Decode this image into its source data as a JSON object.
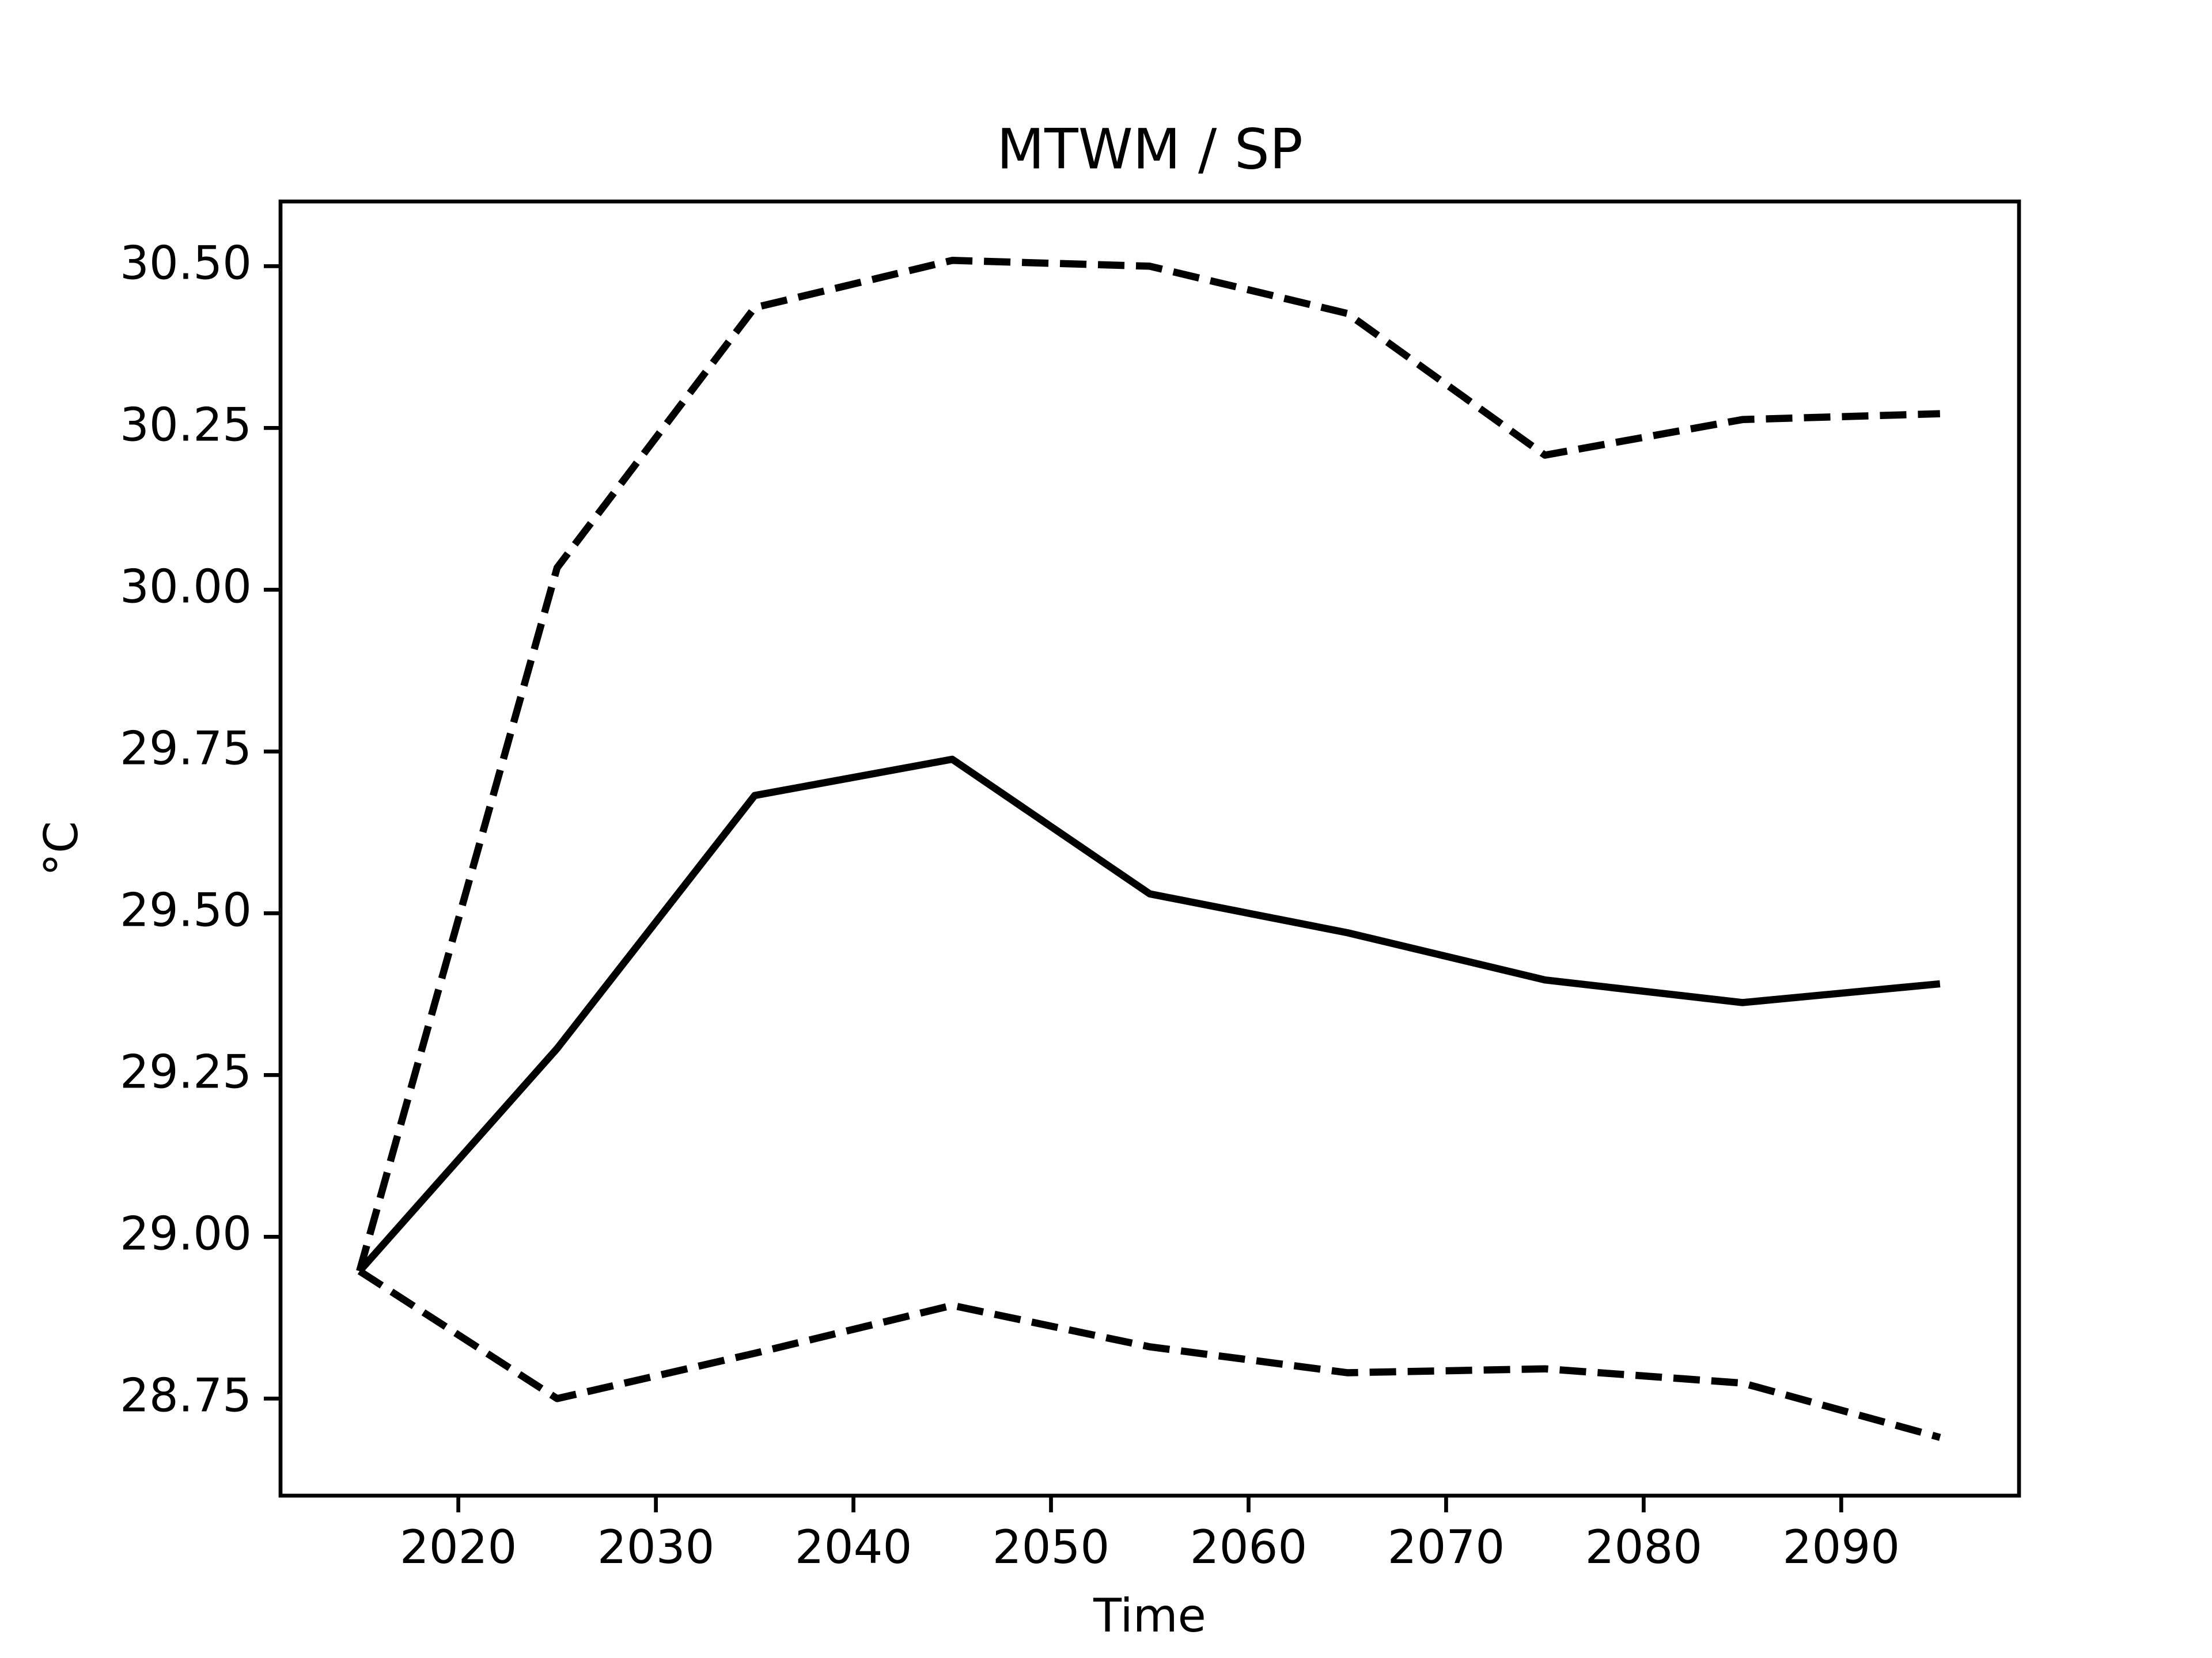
{
  "chart_data": {
    "type": "line",
    "title": "MTWM / SP",
    "xlabel": "Time",
    "ylabel": "°C",
    "x": [
      2015,
      2025,
      2035,
      2045,
      2055,
      2065,
      2075,
      2085,
      2095
    ],
    "series": [
      {
        "color": "#000000",
        "dashed": false,
        "values": [
          28.947,
          29.291,
          29.682,
          29.738,
          29.53,
          29.47,
          29.397,
          29.362,
          29.391
        ]
      },
      {
        "color": "#000000",
        "dashed": true,
        "values": [
          28.947,
          30.034,
          30.436,
          30.509,
          30.5,
          30.427,
          30.208,
          30.263,
          30.272
        ]
      },
      {
        "color": "#000000",
        "dashed": true,
        "values": [
          28.947,
          28.75,
          28.82,
          28.894,
          28.83,
          28.79,
          28.796,
          28.774,
          28.69
        ]
      }
    ],
    "xlim": [
      2011,
      2099
    ],
    "xticks": [
      2020,
      2030,
      2040,
      2050,
      2060,
      2070,
      2080,
      2090
    ],
    "ylim": [
      28.6,
      30.6
    ],
    "yticks": [
      {
        "value": 28.75,
        "label": "28.75"
      },
      {
        "value": 29,
        "label": "29.00"
      },
      {
        "value": 29.25,
        "label": "29.25"
      },
      {
        "value": 29.5,
        "label": "29.50"
      },
      {
        "value": 29.75,
        "label": "29.75"
      },
      {
        "value": 30,
        "label": "30.00"
      },
      {
        "value": 30.25,
        "label": "30.25"
      },
      {
        "value": 30.5,
        "label": "30.50"
      }
    ],
    "grid": false
  }
}
